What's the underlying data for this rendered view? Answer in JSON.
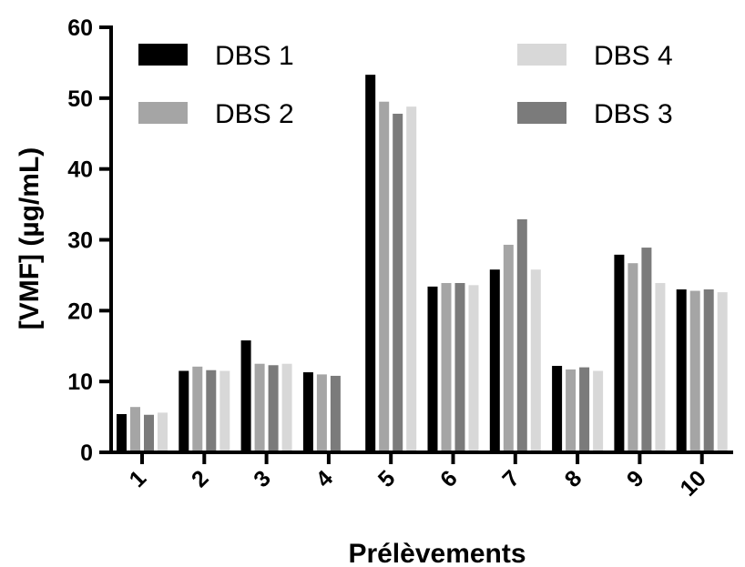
{
  "chart_data": {
    "type": "bar",
    "xlabel": "Prélèvements",
    "ylabel": "[VMF] (µg/mL)",
    "ylim": [
      0,
      60
    ],
    "yticks": [
      0,
      10,
      20,
      30,
      40,
      50,
      60
    ],
    "categories": [
      "1",
      "2",
      "3",
      "4",
      "5",
      "6",
      "7",
      "8",
      "9",
      "10"
    ],
    "series": [
      {
        "name": "DBS 1",
        "color": "#000000",
        "values": [
          5.4,
          11.5,
          15.8,
          11.3,
          53.3,
          23.4,
          25.8,
          12.2,
          27.9,
          23.0
        ]
      },
      {
        "name": "DBS 2",
        "color": "#a5a5a5",
        "values": [
          6.4,
          12.1,
          12.5,
          11.0,
          49.5,
          23.9,
          29.3,
          11.7,
          26.7,
          22.8
        ]
      },
      {
        "name": "DBS 3",
        "color": "#7b7b7b",
        "values": [
          5.3,
          11.6,
          12.3,
          10.8,
          47.8,
          23.9,
          32.9,
          12.0,
          28.9,
          23.0
        ]
      },
      {
        "name": "DBS 4",
        "color": "#d8d8d8",
        "values": [
          5.6,
          11.5,
          12.5,
          null,
          48.8,
          23.6,
          25.8,
          11.5,
          23.9,
          22.6
        ]
      }
    ],
    "legend": {
      "placement": "top",
      "order": [
        0,
        1,
        3,
        2
      ]
    },
    "grid": false
  }
}
